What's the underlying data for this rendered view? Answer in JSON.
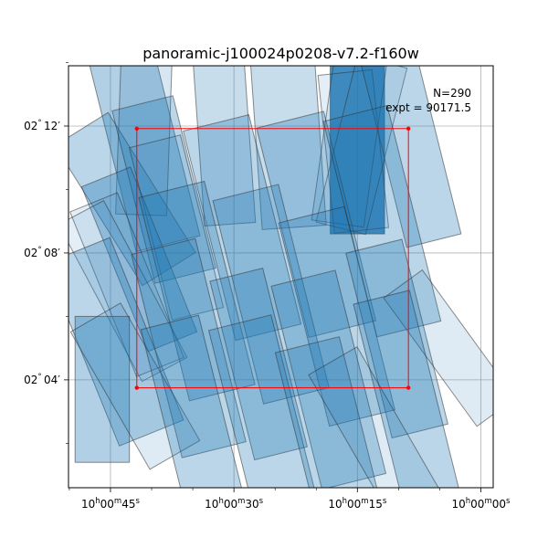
{
  "chart_data": {
    "type": "footprint",
    "title": "panoramic-j100024p0208-v7.2-f160w",
    "annotation": {
      "count_text": "N=290",
      "expt_text": "expt = 90171.5"
    },
    "grid": true,
    "x_axis": {
      "ticks": [
        {
          "ra_sec": 45,
          "label": {
            "h": "10",
            "m": "00",
            "s": "45"
          }
        },
        {
          "ra_sec": 30,
          "label": {
            "h": "10",
            "m": "00",
            "s": "30"
          }
        },
        {
          "ra_sec": 15,
          "label": {
            "h": "10",
            "m": "00",
            "s": "15"
          }
        },
        {
          "ra_sec": 0,
          "label": {
            "h": "10",
            "m": "00",
            "s": "00"
          }
        }
      ],
      "minor_sec": [
        50,
        40,
        35,
        25,
        20,
        10,
        5
      ],
      "range_sec": [
        50.1,
        -1.5
      ]
    },
    "y_axis": {
      "ticks": [
        {
          "dec_min": 12,
          "label": {
            "d": "02",
            "m": "12"
          }
        },
        {
          "dec_min": 8,
          "label": {
            "d": "02",
            "m": "08"
          }
        },
        {
          "dec_min": 4,
          "label": {
            "d": "02",
            "m": "04"
          }
        }
      ],
      "minor_min": [
        14,
        10,
        6,
        2
      ],
      "range_min": [
        0.6,
        13.9
      ]
    },
    "field_box": {
      "ra_sec": [
        41.8,
        8.8
      ],
      "dec_min": [
        3.75,
        11.92
      ]
    },
    "colors": {
      "tile": "#1f77b4",
      "edge": "#333333",
      "box": "#ff0000",
      "grid": "#b0b0b0"
    },
    "tiles": [
      {
        "ra": 40.9,
        "dec": 11.3,
        "w": 8.0,
        "h": 6.2,
        "a": -14,
        "o": 0.35
      },
      {
        "ra": 40.9,
        "dec": 12.0,
        "w": 6.2,
        "h": 5.6,
        "a": 2,
        "o": 0.18
      },
      {
        "ra": 31.2,
        "dec": 11.6,
        "w": 6.2,
        "h": 5.4,
        "a": -4,
        "o": 0.25
      },
      {
        "ra": 23.4,
        "dec": 11.5,
        "w": 7.8,
        "h": 5.4,
        "a": -4,
        "o": 0.25
      },
      {
        "ra": 15.0,
        "dec": 11.3,
        "w": 6.6,
        "h": 5.4,
        "a": 0,
        "o": 0.82
      },
      {
        "ra": 16.0,
        "dec": 11.5,
        "w": 6.4,
        "h": 5.2,
        "a": 8,
        "o": 0.12
      },
      {
        "ra": 15.5,
        "dec": 11.2,
        "w": 6.6,
        "h": 5.0,
        "a": -6,
        "o": 0.12
      },
      {
        "ra": 14.5,
        "dec": 11.4,
        "w": 6.2,
        "h": 5.4,
        "a": 14,
        "o": 0.1
      },
      {
        "ra": 8.5,
        "dec": 11.3,
        "w": 6.8,
        "h": 6.0,
        "a": -14,
        "o": 0.3
      },
      {
        "ra": 43.2,
        "dec": 9.7,
        "w": 7.6,
        "h": 5.2,
        "a": -32,
        "o": 0.3
      },
      {
        "ra": 38.5,
        "dec": 10.0,
        "w": 7.6,
        "h": 5.6,
        "a": -14,
        "o": 0.3
      },
      {
        "ra": 37.0,
        "dec": 8.8,
        "w": 6.4,
        "h": 5.6,
        "a": -14,
        "o": 0.15
      },
      {
        "ra": 29.0,
        "dec": 8.8,
        "w": 8.2,
        "h": 6.8,
        "a": -14,
        "o": 0.3
      },
      {
        "ra": 20.0,
        "dec": 8.9,
        "w": 8.4,
        "h": 6.8,
        "a": -14,
        "o": 0.3
      },
      {
        "ra": 12.0,
        "dec": 9.0,
        "w": 8.0,
        "h": 7.0,
        "a": -14,
        "o": 0.3
      },
      {
        "ra": 41.5,
        "dec": 7.8,
        "w": 6.4,
        "h": 5.6,
        "a": -22,
        "o": 0.35
      },
      {
        "ra": 43.0,
        "dec": 7.0,
        "w": 6.2,
        "h": 5.6,
        "a": -22,
        "o": 0.12
      },
      {
        "ra": 43.5,
        "dec": 6.8,
        "w": 6.2,
        "h": 5.6,
        "a": -28,
        "o": 0.12
      },
      {
        "ra": 34.5,
        "dec": 6.8,
        "w": 8.2,
        "h": 6.6,
        "a": -14,
        "o": 0.3
      },
      {
        "ra": 25.5,
        "dec": 6.7,
        "w": 8.2,
        "h": 6.6,
        "a": -14,
        "o": 0.3
      },
      {
        "ra": 17.5,
        "dec": 6.0,
        "w": 8.2,
        "h": 6.6,
        "a": -14,
        "o": 0.3
      },
      {
        "ra": 10.2,
        "dec": 5.3,
        "w": 7.0,
        "h": 6.0,
        "a": -14,
        "o": 0.3
      },
      {
        "ra": 3.8,
        "dec": 5.0,
        "w": 5.8,
        "h": 5.0,
        "a": -36,
        "o": 0.15
      },
      {
        "ra": 44.5,
        "dec": 5.2,
        "w": 8.4,
        "h": 6.2,
        "a": -22,
        "o": 0.3
      },
      {
        "ra": 35.5,
        "dec": 5.0,
        "w": 8.0,
        "h": 6.6,
        "a": -14,
        "o": 0.3
      },
      {
        "ra": 27.0,
        "dec": 4.5,
        "w": 6.6,
        "h": 5.8,
        "a": -14,
        "o": 0.3
      },
      {
        "ra": 18.5,
        "dec": 4.0,
        "w": 8.0,
        "h": 6.6,
        "a": -14,
        "o": 0.3
      },
      {
        "ra": 46.0,
        "dec": 3.7,
        "w": 6.6,
        "h": 4.6,
        "a": 0,
        "o": 0.35
      },
      {
        "ra": 42.0,
        "dec": 3.8,
        "w": 7.0,
        "h": 5.0,
        "a": -30,
        "o": 0.15
      },
      {
        "ra": 35.0,
        "dec": 2.9,
        "w": 7.2,
        "h": 6.0,
        "a": -14,
        "o": 0.3
      },
      {
        "ra": 26.2,
        "dec": 2.6,
        "w": 7.8,
        "h": 6.6,
        "a": -14,
        "o": 0.3
      },
      {
        "ra": 18.2,
        "dec": 2.1,
        "w": 8.0,
        "h": 6.2,
        "a": -14,
        "o": 0.3
      },
      {
        "ra": 9.0,
        "dec": 3.4,
        "w": 7.0,
        "h": 6.6,
        "a": -14,
        "o": 0.3
      },
      {
        "ra": 12.2,
        "dec": 2.0,
        "w": 6.8,
        "h": 6.0,
        "a": -30,
        "o": 0.15
      }
    ]
  }
}
